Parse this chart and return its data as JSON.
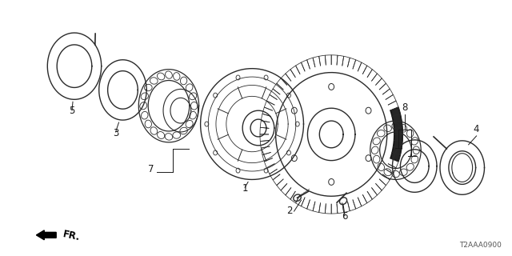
{
  "background_color": "#ffffff",
  "part_color": "#2a2a2a",
  "part_linewidth": 1.0,
  "catalog_code": "T2AAA0900",
  "figsize": [
    6.4,
    3.2
  ],
  "dpi": 100
}
